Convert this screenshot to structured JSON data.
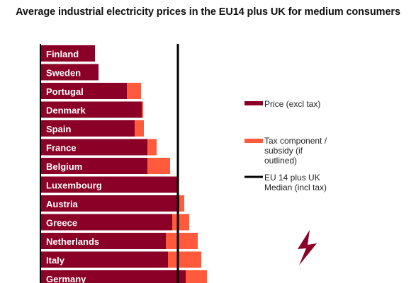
{
  "chart_data": {
    "type": "bar",
    "orientation": "horizontal",
    "stacked": true,
    "title": "Average industrial electricity prices in the EU14 plus UK for medium consumers",
    "categories": [
      "Finland",
      "Sweden",
      "Portugal",
      "Denmark",
      "Spain",
      "France",
      "Belgium",
      "Luxembourg",
      "Austria",
      "Greece",
      "Netherlands",
      "Italy",
      "Germany"
    ],
    "series": [
      {
        "name": "Price (excl tax)",
        "color": "#8b0026",
        "values": [
          77,
          82,
          122,
          143,
          133,
          151,
          151,
          194,
          196,
          186,
          177,
          180,
          205
        ]
      },
      {
        "name": "Tax component / subsidy (if outlined)",
        "color": "#ff5a3c",
        "values": [
          0,
          0,
          20,
          2,
          13,
          13,
          32,
          0,
          7,
          24,
          45,
          47,
          30
        ]
      }
    ],
    "reference_line": {
      "name": "EU 14 plus UK Median (incl tax)",
      "value": 194,
      "color": "#000000"
    },
    "xlim": [
      0,
      300
    ],
    "legend_position": "right",
    "grid": false
  },
  "decoration": {
    "icon": "lightning-bolt-icon",
    "color": "#8b0026"
  }
}
